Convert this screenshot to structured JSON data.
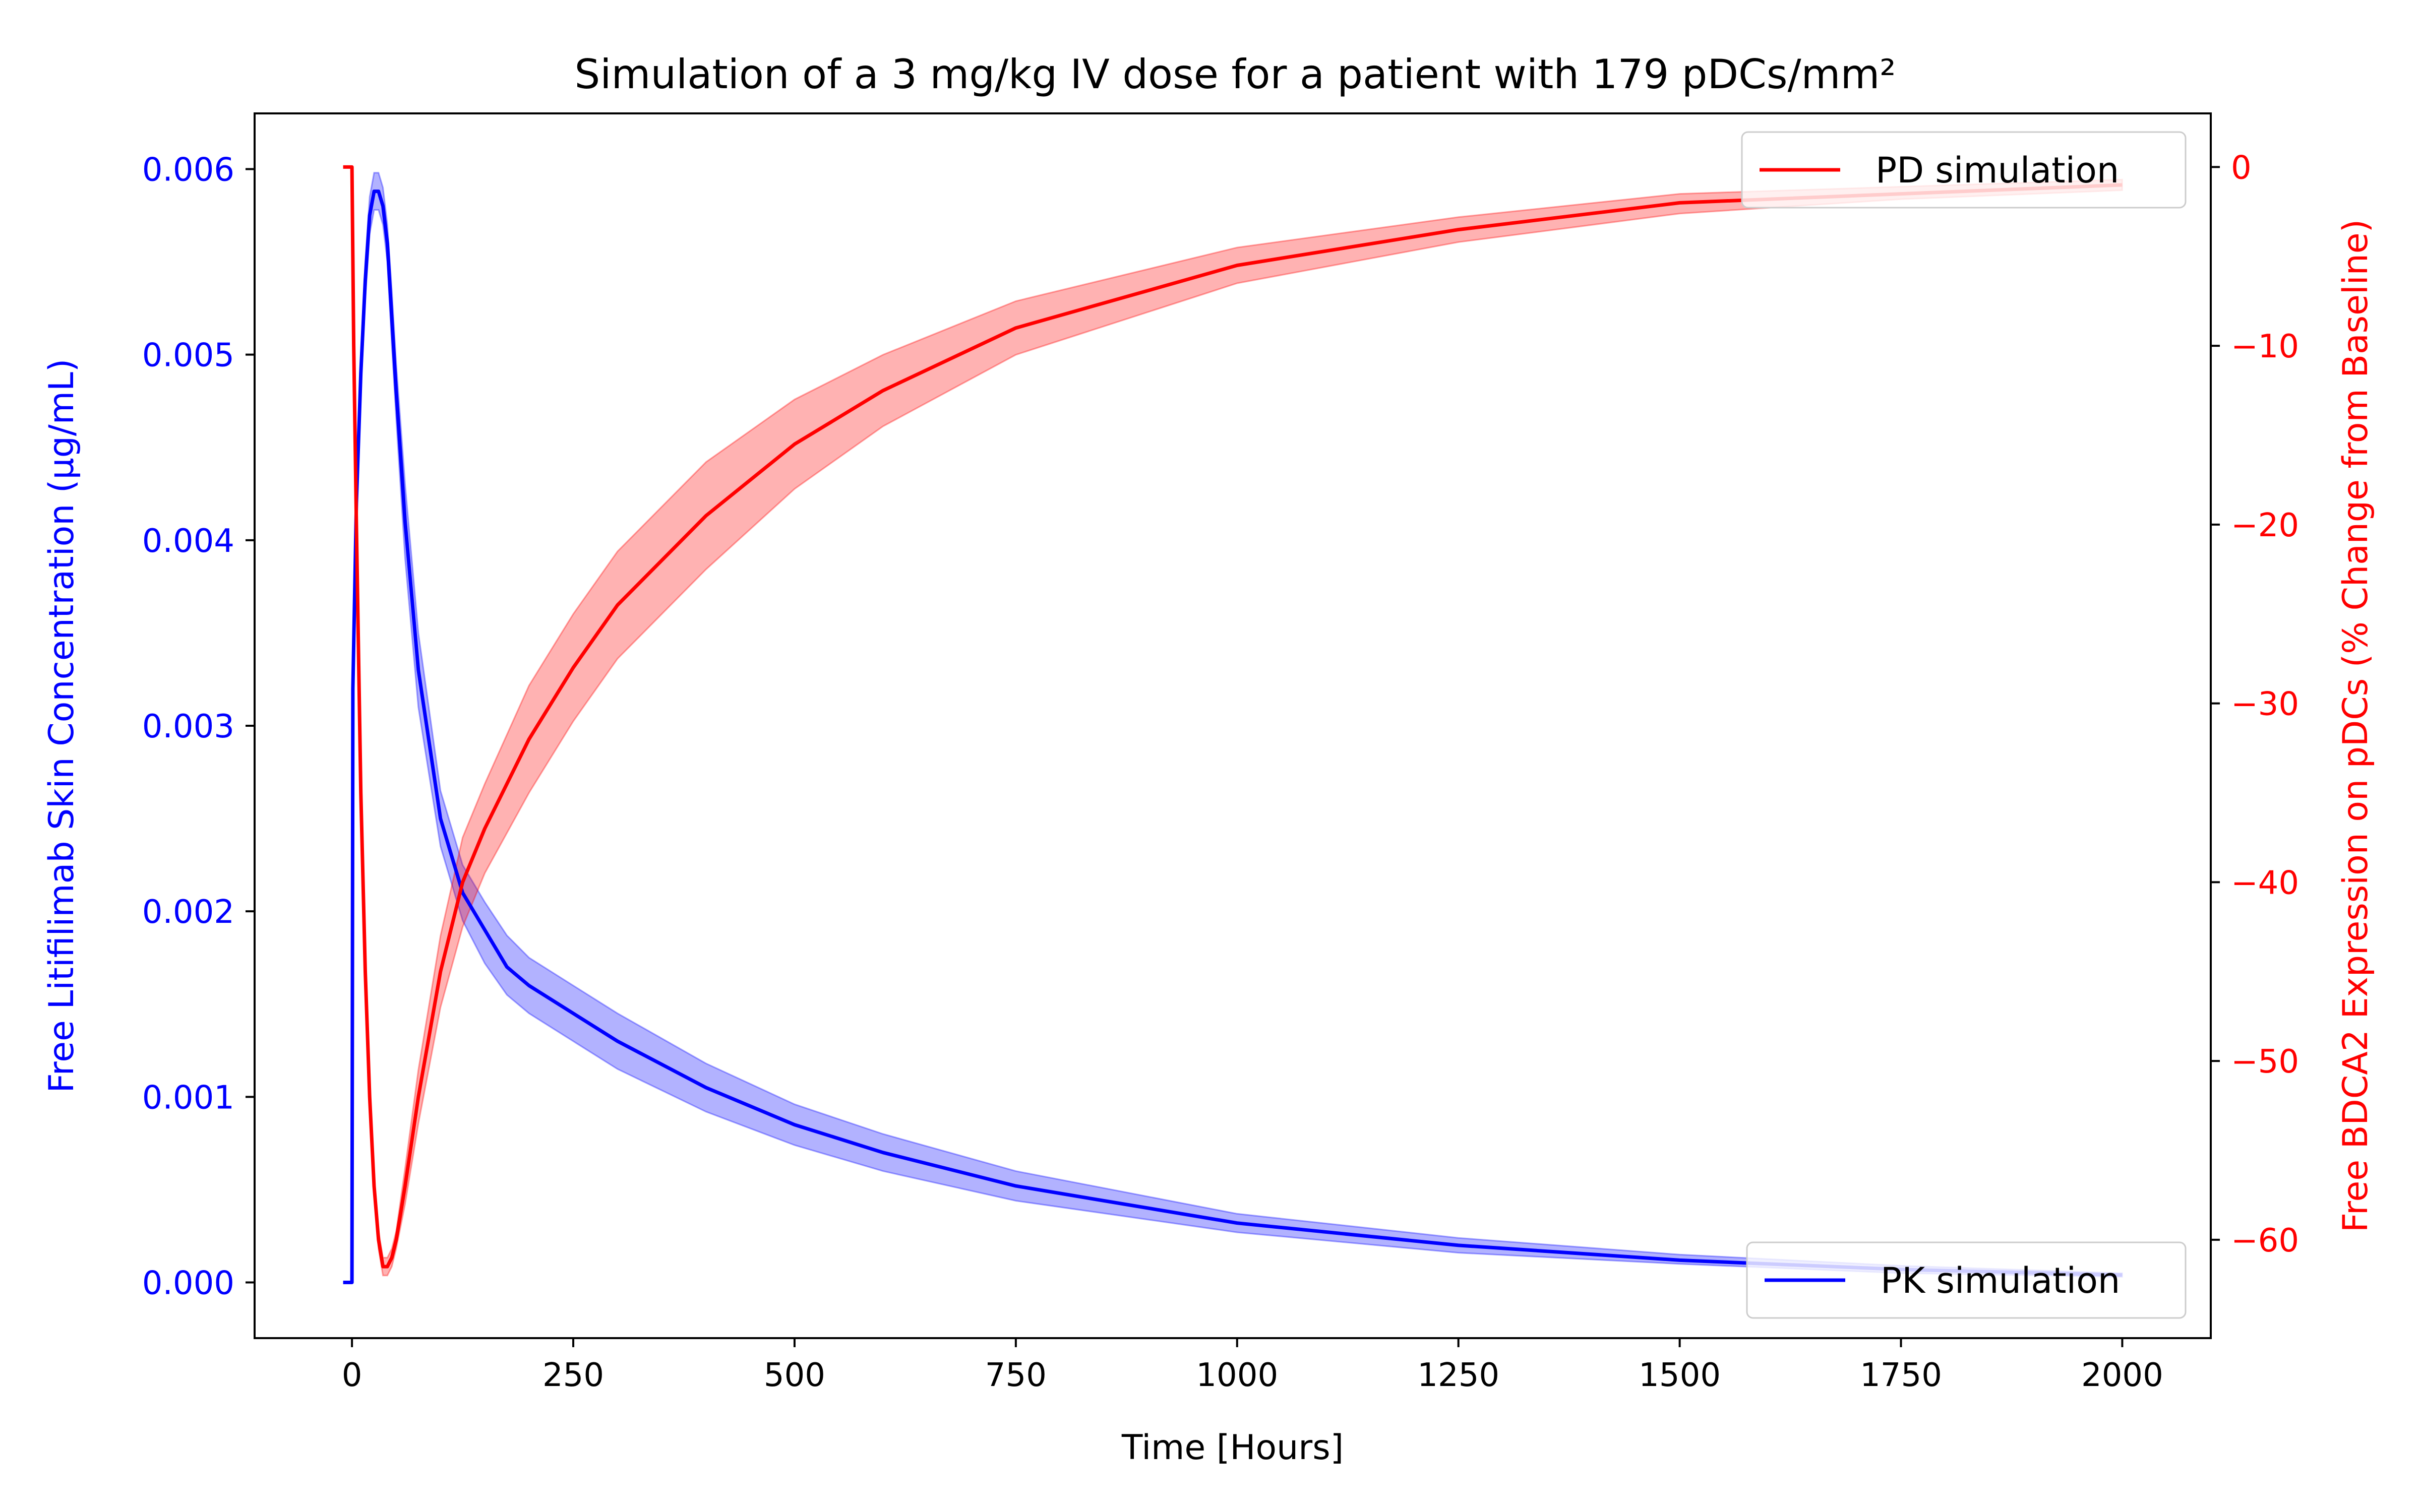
{
  "chart_data": {
    "type": "line",
    "title": "Simulation of a 3 mg/kg IV dose for a patient with 179 pDCs/mm²",
    "xlabel": "Time [Hours]",
    "ylabel_left": "Free Litifilimab Skin Concentration (µg/mL)",
    "ylabel_right": "Free BDCA2 Expression on pDCs (% Change from Baseline)",
    "xlim": [
      -110,
      2100
    ],
    "ylim_left": [
      -0.0003,
      0.0063
    ],
    "ylim_right": [
      -65.5,
      3.0
    ],
    "x_ticks": [
      0,
      250,
      500,
      750,
      1000,
      1250,
      1500,
      1750,
      2000
    ],
    "x_tick_labels": [
      "0",
      "250",
      "500",
      "750",
      "1000",
      "1250",
      "1500",
      "1750",
      "2000"
    ],
    "y_left_ticks": [
      0.0,
      0.001,
      0.002,
      0.003,
      0.004,
      0.005,
      0.006
    ],
    "y_left_tick_labels": [
      "0.000",
      "0.001",
      "0.002",
      "0.003",
      "0.004",
      "0.005",
      "0.006"
    ],
    "y_right_ticks": [
      0,
      -10,
      -20,
      -30,
      -40,
      -50,
      -60
    ],
    "y_right_tick_labels": [
      "0",
      "−10",
      "−20",
      "−30",
      "−40",
      "−50",
      "−60"
    ],
    "grid": false,
    "series": [
      {
        "name": "PK simulation",
        "axis": "left",
        "color": "#0000ff",
        "band_color": "#0000ff",
        "legend_position": "lower-right",
        "x": [
          -10,
          -1,
          0,
          1,
          5,
          10,
          15,
          20,
          25,
          30,
          35,
          40,
          45,
          50,
          60,
          75,
          100,
          125,
          150,
          175,
          200,
          250,
          300,
          400,
          500,
          600,
          750,
          1000,
          1250,
          1500,
          1750,
          2000
        ],
        "y": [
          0.0,
          0.0,
          0.0,
          0.0032,
          0.0042,
          0.0049,
          0.0054,
          0.00575,
          0.00588,
          0.00588,
          0.0058,
          0.0056,
          0.0052,
          0.0048,
          0.0041,
          0.0033,
          0.0025,
          0.0021,
          0.0019,
          0.0017,
          0.0016,
          0.00145,
          0.0013,
          0.00105,
          0.00085,
          0.0007,
          0.00052,
          0.00032,
          0.0002,
          0.00012,
          7e-05,
          4e-05
        ],
        "y_lower": [
          0.0,
          0.0,
          0.0,
          0.0031,
          0.0041,
          0.0048,
          0.0053,
          0.00565,
          0.00578,
          0.00578,
          0.0057,
          0.0055,
          0.00505,
          0.00465,
          0.0039,
          0.0031,
          0.00235,
          0.00195,
          0.00172,
          0.00155,
          0.00145,
          0.0013,
          0.00115,
          0.00092,
          0.00074,
          0.0006,
          0.00044,
          0.00027,
          0.00016,
          0.0001,
          5e-05,
          3e-05
        ],
        "y_upper": [
          0.0,
          0.0,
          0.0,
          0.0033,
          0.0043,
          0.005,
          0.0055,
          0.00585,
          0.00598,
          0.00598,
          0.0059,
          0.0057,
          0.00535,
          0.00495,
          0.0043,
          0.0035,
          0.00265,
          0.00225,
          0.00205,
          0.00187,
          0.00175,
          0.0016,
          0.00145,
          0.00118,
          0.00096,
          0.0008,
          0.0006,
          0.00037,
          0.00024,
          0.00015,
          9e-05,
          5e-05
        ]
      },
      {
        "name": "PD simulation",
        "axis": "right",
        "color": "#ff0000",
        "band_color": "#ff0000",
        "legend_position": "upper-right",
        "x": [
          -10,
          -1,
          0,
          2,
          5,
          10,
          15,
          20,
          25,
          30,
          35,
          40,
          45,
          50,
          60,
          75,
          100,
          125,
          150,
          200,
          250,
          300,
          400,
          500,
          600,
          750,
          1000,
          1250,
          1500,
          1750,
          2000
        ],
        "y": [
          0,
          0,
          0,
          -10,
          -20,
          -35,
          -45,
          -52,
          -57,
          -60,
          -61.5,
          -61.5,
          -61,
          -60,
          -57,
          -52,
          -45,
          -40,
          -37,
          -32,
          -28,
          -24.5,
          -19.5,
          -15.5,
          -12.5,
          -9,
          -5.5,
          -3.5,
          -2,
          -1.5,
          -1
        ],
        "y_lower": [
          0,
          0,
          0,
          -10.5,
          -20.5,
          -35.5,
          -45.5,
          -52.5,
          -57.5,
          -60.5,
          -62,
          -62,
          -61.5,
          -60.5,
          -58,
          -53.5,
          -47,
          -42.5,
          -39.5,
          -35,
          -31,
          -27.5,
          -22.5,
          -18,
          -14.5,
          -10.5,
          -6.5,
          -4.2,
          -2.6,
          -1.8,
          -1.3
        ],
        "y_upper": [
          0,
          0,
          0,
          -9.5,
          -19.5,
          -34.5,
          -44.5,
          -51.5,
          -56.5,
          -59.5,
          -61,
          -61,
          -60.5,
          -59.5,
          -56,
          -50.5,
          -43,
          -37.5,
          -34.5,
          -29,
          -25,
          -21.5,
          -16.5,
          -13,
          -10.5,
          -7.5,
          -4.5,
          -2.8,
          -1.5,
          -1.1,
          -0.7
        ]
      }
    ]
  }
}
